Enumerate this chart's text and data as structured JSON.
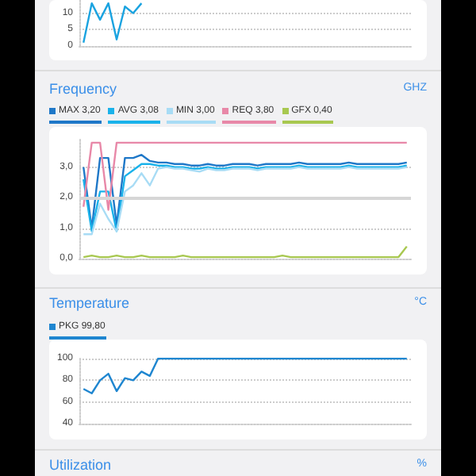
{
  "chart_data": [
    {
      "type": "line",
      "categories": [
        null,
        null,
        null,
        null,
        null,
        null,
        null,
        null,
        null,
        null,
        null,
        null,
        null,
        null,
        null,
        null,
        null,
        null,
        null,
        null,
        null,
        null,
        null,
        null,
        null,
        null,
        null,
        null,
        null,
        null,
        null,
        null,
        null,
        null,
        null,
        null,
        null,
        null,
        null,
        null
      ],
      "ylim": [
        0,
        14
      ],
      "yticks": [
        0,
        5,
        10
      ],
      "grid": "y",
      "legend": false,
      "marker": "none",
      "tick_labels": "y",
      "series": [
        {
          "color": "#1aa3e0",
          "values": [
            1,
            13,
            8,
            13,
            2,
            12,
            10,
            13,
            null,
            null,
            null,
            null,
            null,
            null,
            null,
            null,
            null,
            null,
            null,
            null,
            null,
            null,
            null,
            null,
            null,
            null,
            null,
            null,
            null,
            null,
            null,
            null,
            null,
            null,
            null,
            null,
            null,
            null,
            null,
            null
          ]
        }
      ]
    },
    {
      "type": "line",
      "title": "Frequency",
      "ylabel": "GHZ",
      "categories": [
        null,
        null,
        null,
        null,
        null,
        null,
        null,
        null,
        null,
        null,
        null,
        null,
        null,
        null,
        null,
        null,
        null,
        null,
        null,
        null,
        null,
        null,
        null,
        null,
        null,
        null,
        null,
        null,
        null,
        null,
        null,
        null,
        null,
        null,
        null,
        null,
        null,
        null,
        null,
        null
      ],
      "ylim": [
        0,
        3.9
      ],
      "yticks": [
        {
          "value": 0,
          "label": "0,0"
        },
        {
          "value": 1,
          "label": "1,0"
        },
        {
          "value": 2,
          "label": "2,0"
        },
        {
          "value": 3,
          "label": "3,0"
        }
      ],
      "grid": "y",
      "legend": "top",
      "marker": "none",
      "tick_labels": "y",
      "ref_lines": [
        {
          "axis": "y",
          "value": 2,
          "color": "#d6d6d6"
        }
      ],
      "series": [
        {
          "name": "MAX 3,20",
          "color": "#1f78c8",
          "values": [
            3.0,
            1.0,
            3.3,
            3.3,
            1.1,
            3.3,
            3.3,
            3.4,
            3.2,
            3.15,
            3.15,
            3.1,
            3.1,
            3.05,
            3.05,
            3.1,
            3.05,
            3.05,
            3.1,
            3.1,
            3.1,
            3.05,
            3.1,
            3.1,
            3.1,
            3.1,
            3.15,
            3.1,
            3.1,
            3.1,
            3.1,
            3.1,
            3.15,
            3.1,
            3.1,
            3.1,
            3.1,
            3.1,
            3.1,
            3.15
          ]
        },
        {
          "name": "AVG 3,08",
          "color": "#1ab2ea",
          "values": [
            2.6,
            0.9,
            2.2,
            2.2,
            0.9,
            2.7,
            2.9,
            3.1,
            3.1,
            3.05,
            3.05,
            3.0,
            3.0,
            2.95,
            2.95,
            3.0,
            2.95,
            2.95,
            3.0,
            3.0,
            3.0,
            2.95,
            3.0,
            3.0,
            3.0,
            3.0,
            3.05,
            3.0,
            3.0,
            3.0,
            3.0,
            3.0,
            3.05,
            3.0,
            3.0,
            3.0,
            3.0,
            3.0,
            3.0,
            3.05
          ]
        },
        {
          "name": "MIN 3,00",
          "color": "#a8dcf5",
          "values": [
            0.8,
            0.8,
            1.8,
            1.3,
            0.9,
            2.2,
            2.4,
            2.8,
            2.4,
            2.95,
            3.0,
            2.95,
            2.95,
            2.9,
            2.85,
            2.95,
            2.9,
            2.9,
            2.95,
            2.95,
            2.95,
            2.9,
            2.95,
            2.95,
            2.95,
            2.95,
            3.0,
            2.95,
            2.95,
            2.95,
            2.95,
            2.95,
            3.0,
            2.95,
            2.95,
            2.95,
            2.95,
            2.95,
            2.95,
            3.0
          ]
        },
        {
          "name": "REQ 3,80",
          "color": "#e888a8",
          "values": [
            1.7,
            3.8,
            3.8,
            1.6,
            3.8,
            3.8,
            3.8,
            3.8,
            3.8,
            3.8,
            3.8,
            3.8,
            3.8,
            3.8,
            3.8,
            3.8,
            3.8,
            3.8,
            3.8,
            3.8,
            3.8,
            3.8,
            3.8,
            3.8,
            3.8,
            3.8,
            3.8,
            3.8,
            3.8,
            3.8,
            3.8,
            3.8,
            3.8,
            3.8,
            3.8,
            3.8,
            3.8,
            3.8,
            3.8,
            3.8
          ]
        },
        {
          "name": "GFX 0,40",
          "color": "#a8c850",
          "values": [
            0.05,
            0.1,
            0.05,
            0.05,
            0.1,
            0.05,
            0.05,
            0.1,
            0.05,
            0.05,
            0.05,
            0.05,
            0.1,
            0.05,
            0.05,
            0.05,
            0.05,
            0.05,
            0.05,
            0.05,
            0.05,
            0.05,
            0.05,
            0.05,
            0.1,
            0.05,
            0.05,
            0.05,
            0.05,
            0.05,
            0.05,
            0.05,
            0.05,
            0.05,
            0.05,
            0.05,
            0.05,
            0.05,
            0.05,
            0.4
          ]
        }
      ]
    },
    {
      "type": "line",
      "title": "Temperature",
      "ylabel": "°C",
      "categories": [
        null,
        null,
        null,
        null,
        null,
        null,
        null,
        null,
        null,
        null,
        null,
        null,
        null,
        null,
        null,
        null,
        null,
        null,
        null,
        null,
        null,
        null,
        null,
        null,
        null,
        null,
        null,
        null,
        null,
        null,
        null,
        null,
        null,
        null,
        null,
        null,
        null,
        null,
        null,
        null
      ],
      "ylim": [
        40,
        100
      ],
      "yticks": [
        40,
        60,
        80,
        100
      ],
      "grid": "y",
      "legend": "top",
      "marker": "none",
      "tick_labels": "y",
      "series": [
        {
          "name": "PKG 99,80",
          "color": "#1f86d0",
          "values": [
            72,
            68,
            80,
            86,
            70,
            82,
            80,
            88,
            84,
            100,
            100,
            100,
            100,
            100,
            100,
            100,
            100,
            100,
            100,
            100,
            100,
            100,
            100,
            100,
            100,
            100,
            100,
            100,
            100,
            100,
            100,
            100,
            100,
            100,
            100,
            100,
            100,
            100,
            100,
            100
          ]
        }
      ]
    },
    {
      "type": "other",
      "title": "Utilization",
      "ylabel": "%"
    }
  ]
}
